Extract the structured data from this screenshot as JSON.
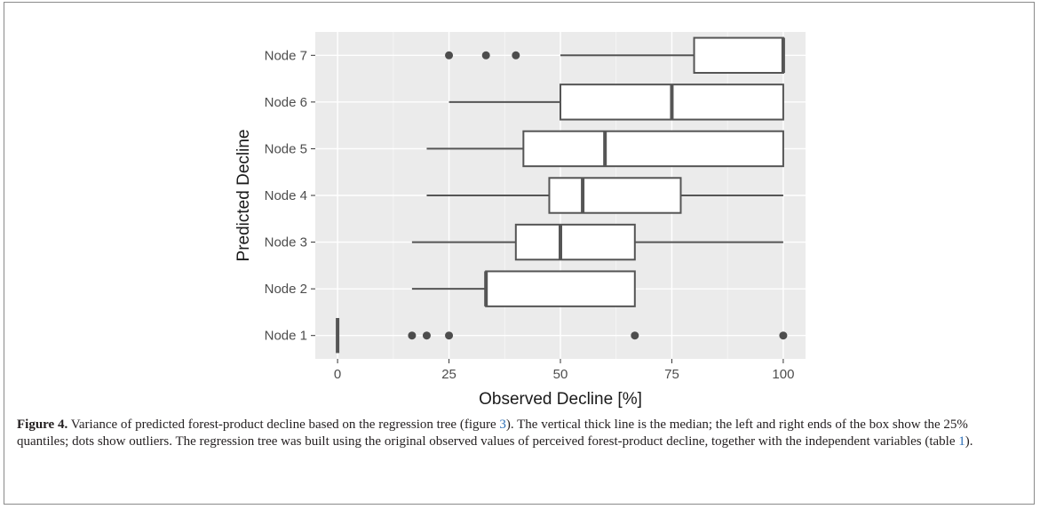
{
  "chart_data": {
    "type": "boxplot",
    "orientation": "horizontal",
    "xlabel": "Observed Decline [%]",
    "ylabel": "Predicted Decline",
    "xlim": [
      -5,
      105
    ],
    "x_ticks": [
      0,
      25,
      50,
      75,
      100
    ],
    "grid": true,
    "background": "#ebebeb",
    "categories": [
      "Node 1",
      "Node 2",
      "Node 3",
      "Node 4",
      "Node 5",
      "Node 6",
      "Node 7"
    ],
    "boxes": [
      {
        "category": "Node 1",
        "whisker_low": 0,
        "q1": 0,
        "median": 0,
        "q3": 0,
        "whisker_high": 0,
        "outliers": [
          16.7,
          20,
          25,
          66.7,
          100
        ]
      },
      {
        "category": "Node 2",
        "whisker_low": 16.7,
        "q1": 33.3,
        "median": 33.3,
        "q3": 66.7,
        "whisker_high": 66.7,
        "outliers": []
      },
      {
        "category": "Node 3",
        "whisker_low": 16.7,
        "q1": 40,
        "median": 50,
        "q3": 66.7,
        "whisker_high": 100,
        "outliers": []
      },
      {
        "category": "Node 4",
        "whisker_low": 20,
        "q1": 47.5,
        "median": 55,
        "q3": 77,
        "whisker_high": 100,
        "outliers": []
      },
      {
        "category": "Node 5",
        "whisker_low": 20,
        "q1": 41.7,
        "median": 60,
        "q3": 100,
        "whisker_high": 100,
        "outliers": []
      },
      {
        "category": "Node 6",
        "whisker_low": 25,
        "q1": 50,
        "median": 75,
        "q3": 100,
        "whisker_high": 100,
        "outliers": []
      },
      {
        "category": "Node 7",
        "whisker_low": 50,
        "q1": 80,
        "median": 100,
        "q3": 100,
        "whisker_high": 100,
        "outliers": [
          25,
          33.3,
          40
        ]
      }
    ]
  },
  "caption": {
    "label": "Figure 4.",
    "segments": [
      {
        "text": " Variance of predicted forest-product decline based on the regression tree (figure ",
        "ref": false
      },
      {
        "text": "3",
        "ref": true
      },
      {
        "text": "). The vertical thick line is the median; the left and right ends of the box show the 25% quantiles; dots show outliers. The regression tree was built using the original observed values of perceived forest-product decline, together with the independent variables (table ",
        "ref": false
      },
      {
        "text": "1",
        "ref": true
      },
      {
        "text": ").",
        "ref": false
      }
    ]
  },
  "colors": {
    "panel": "#ebebeb",
    "grid_major": "#ffffff",
    "box_line": "#555555",
    "point": "#4d4d4d",
    "ref_link": "#2a6db5"
  }
}
